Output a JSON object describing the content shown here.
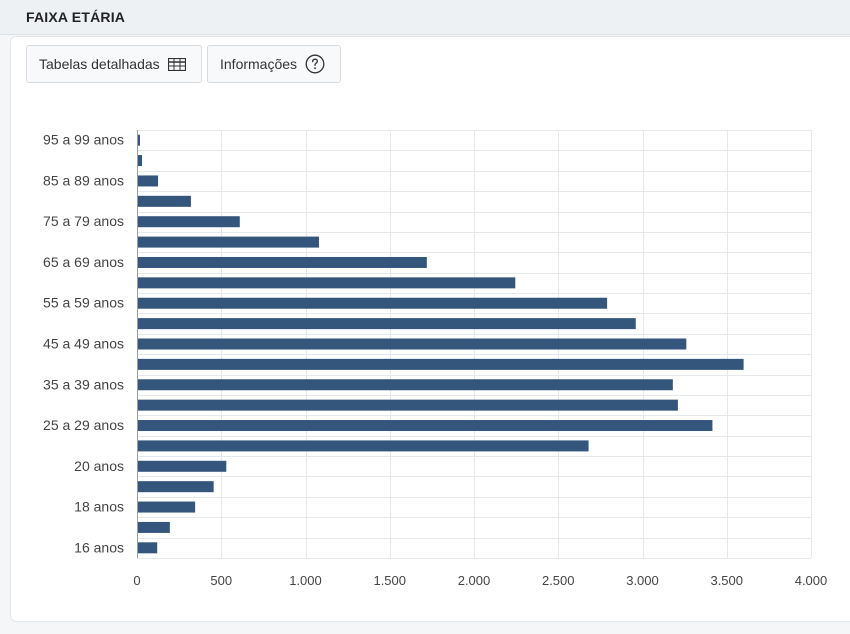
{
  "header": {
    "title": "FAIXA ETÁRIA"
  },
  "toolbar": {
    "tabelas_label": "Tabelas detalhadas",
    "tabelas_icon": "table-icon",
    "info_label": "Informações",
    "info_icon": "help-circle-icon"
  },
  "colors": {
    "bar": "#34567d",
    "grid": "#e6e9ec",
    "axis": "#9aa0a6"
  },
  "chart_data": {
    "type": "bar",
    "orientation": "horizontal",
    "categories": [
      "95 a 99 anos",
      "",
      "85 a 89 anos",
      "",
      "75 a 79 anos",
      "",
      "65 a 69 anos",
      "",
      "55 a 59 anos",
      "",
      "45 a 49 anos",
      "",
      "35 a 39 anos",
      "",
      "25 a 29 anos",
      "",
      "20 anos",
      "",
      "18 anos",
      "",
      "16 anos"
    ],
    "values": [
      10,
      30,
      125,
      320,
      610,
      1080,
      1720,
      2245,
      2790,
      2960,
      3260,
      3600,
      3180,
      3210,
      3415,
      2680,
      530,
      455,
      345,
      195,
      120
    ],
    "xlim": [
      0,
      4000
    ],
    "xticks": [
      0,
      500,
      1000,
      1500,
      2000,
      2500,
      3000,
      3500,
      4000
    ],
    "xtick_labels": [
      "0",
      "500",
      "1.000",
      "1.500",
      "2.000",
      "2.500",
      "3.000",
      "3.500",
      "4.000"
    ],
    "grid": true,
    "title": "",
    "xlabel": "",
    "ylabel": ""
  }
}
